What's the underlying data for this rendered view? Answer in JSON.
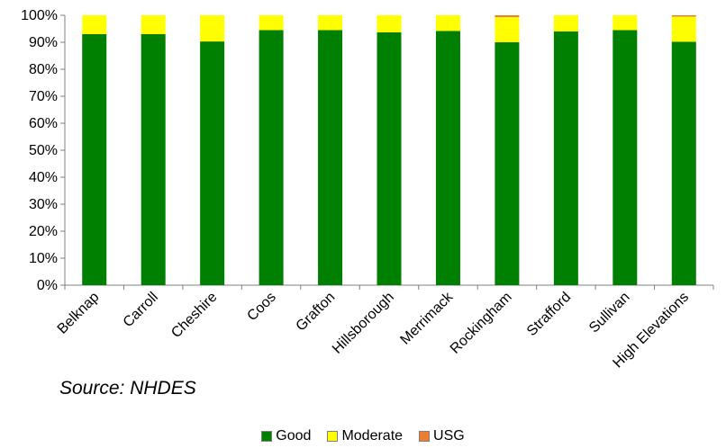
{
  "chart_data": {
    "type": "bar",
    "stacked": true,
    "source_note": "Source:  NHDES",
    "categories": [
      "Belknap",
      "Carroll",
      "Cheshire",
      "Coos",
      "Grafton",
      "Hillsborough",
      "Merrimack",
      "Rockingham",
      "Strafford",
      "Sullivan",
      "High Elevations"
    ],
    "series": [
      {
        "name": "Good",
        "color": "#008000",
        "values": [
          93,
          93,
          90.3,
          94.5,
          94.5,
          93.7,
          94.2,
          90,
          94,
          94.5,
          90.2
        ]
      },
      {
        "name": "Moderate",
        "color": "#ffff00",
        "values": [
          7,
          7,
          9.7,
          5.5,
          5.5,
          6.3,
          5.8,
          9.3,
          6,
          5.5,
          9.3
        ]
      },
      {
        "name": "USG",
        "color": "#ed7d31",
        "values": [
          0,
          0,
          0,
          0,
          0,
          0,
          0,
          0.7,
          0,
          0,
          0.5
        ]
      }
    ],
    "ylim": [
      0,
      100
    ],
    "y_ticks": [
      "0%",
      "10%",
      "20%",
      "30%",
      "40%",
      "50%",
      "60%",
      "70%",
      "80%",
      "90%",
      "100%"
    ],
    "grid": false,
    "legend": {
      "placement": "bottom",
      "items": [
        "Good",
        "Moderate",
        "USG"
      ]
    }
  }
}
